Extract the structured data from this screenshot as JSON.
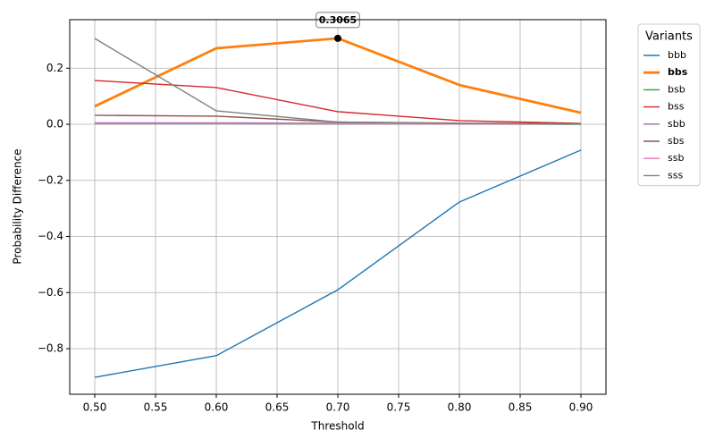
{
  "chart_data": {
    "type": "line",
    "x_label": "Threshold",
    "y_label": "Probability Difference",
    "x": [
      0.5,
      0.6,
      0.7,
      0.8,
      0.9
    ],
    "series": [
      {
        "name": "bbb",
        "color": "#1f77b4",
        "values": [
          -0.902,
          -0.825,
          -0.59,
          -0.277,
          -0.092
        ]
      },
      {
        "name": "bbs",
        "color": "#ff7f0e",
        "highlight": true,
        "values": [
          0.064,
          0.271,
          0.3065,
          0.14,
          0.041
        ],
        "value_labels": [
          null,
          null,
          "0.3065",
          null,
          null
        ]
      },
      {
        "name": "bsb",
        "color": "#2ca02c",
        "values": [
          0.002,
          0.002,
          0.001,
          0.001,
          0.0
        ]
      },
      {
        "name": "bss",
        "color": "#d62728",
        "values": [
          0.156,
          0.131,
          0.045,
          0.013,
          0.003
        ]
      },
      {
        "name": "sbb",
        "color": "#9467bd",
        "values": [
          0.005,
          0.005,
          0.004,
          0.002,
          0.001
        ]
      },
      {
        "name": "sbs",
        "color": "#8c564b",
        "values": [
          0.032,
          0.029,
          0.008,
          0.004,
          0.002
        ]
      },
      {
        "name": "ssb",
        "color": "#e377c2",
        "values": [
          0.003,
          0.003,
          0.002,
          0.001,
          0.001
        ]
      },
      {
        "name": "sss",
        "color": "#7f7f7f",
        "values": [
          0.306,
          0.048,
          0.008,
          0.003,
          0.001
        ]
      }
    ],
    "xlim": [
      0.4794,
      0.9206
    ],
    "ylim": [
      -0.9625,
      0.373
    ],
    "xticks": [
      {
        "value": 0.5,
        "label": "0.50"
      },
      {
        "value": 0.55,
        "label": "0.55"
      },
      {
        "value": 0.6,
        "label": "0.60"
      },
      {
        "value": 0.65,
        "label": "0.65"
      },
      {
        "value": 0.7,
        "label": "0.70"
      },
      {
        "value": 0.75,
        "label": "0.75"
      },
      {
        "value": 0.8,
        "label": "0.80"
      },
      {
        "value": 0.85,
        "label": "0.85"
      },
      {
        "value": 0.9,
        "label": "0.90"
      }
    ],
    "yticks": [
      {
        "value": -0.8,
        "label": "−0.8"
      },
      {
        "value": -0.6,
        "label": "−0.6"
      },
      {
        "value": -0.4,
        "label": "−0.4"
      },
      {
        "value": -0.2,
        "label": "−0.2"
      },
      {
        "value": 0,
        "label": "0.0"
      },
      0.2
    ],
    "grid": true,
    "legend_title": "Variants",
    "legend_position": "outside-right"
  }
}
